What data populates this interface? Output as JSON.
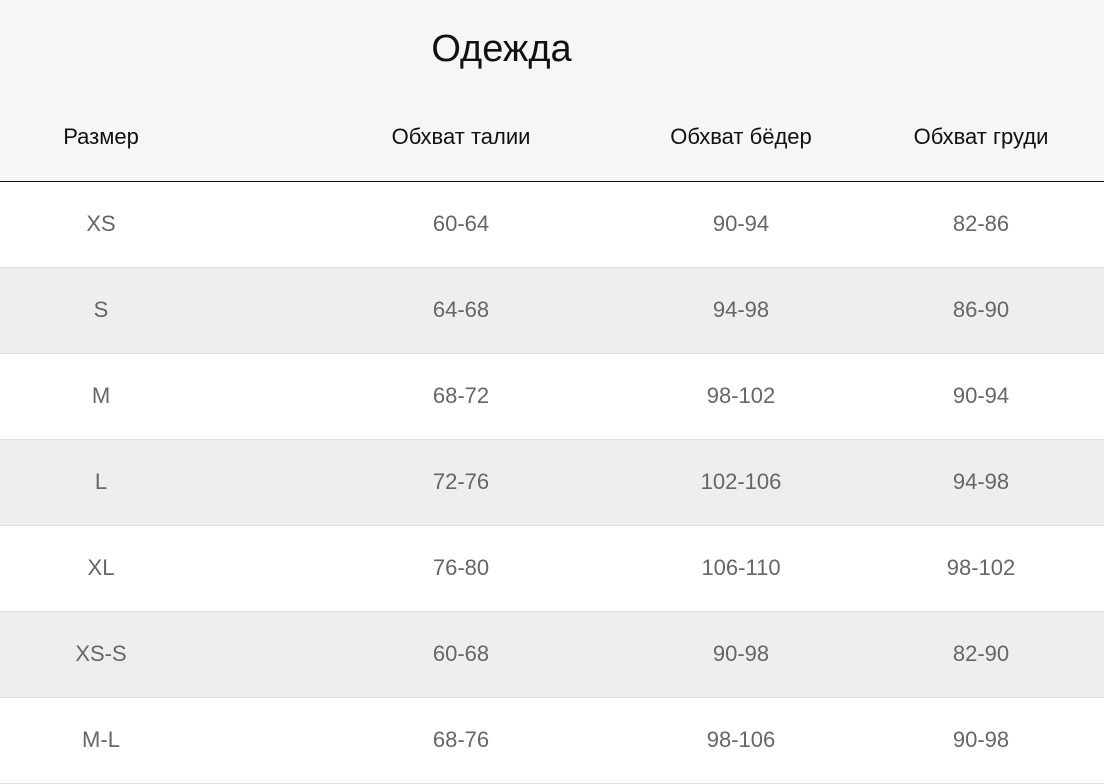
{
  "title": "Одежда",
  "columns": [
    "Размер",
    "Обхват талии",
    "Обхват бёдер",
    "Обхват груди"
  ],
  "rows": [
    [
      "XS",
      "60-64",
      "90-94",
      "82-86"
    ],
    [
      "S",
      "64-68",
      "94-98",
      "86-90"
    ],
    [
      "M",
      "68-72",
      "98-102",
      "90-94"
    ],
    [
      "L",
      "72-76",
      "102-106",
      "94-98"
    ],
    [
      "XL",
      "76-80",
      "106-110",
      "98-102"
    ],
    [
      "XS-S",
      "60-68",
      "90-98",
      "82-90"
    ],
    [
      "M-L",
      "68-76",
      "98-106",
      "90-98"
    ]
  ]
}
